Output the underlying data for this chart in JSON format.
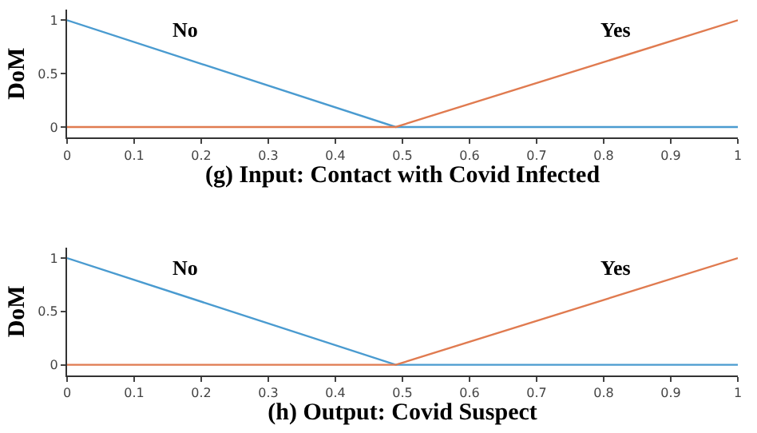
{
  "chart_data": [
    {
      "type": "line",
      "xlabel": "(g) Input: Contact with Covid Infected",
      "ylabel": "DoM",
      "series": [
        {
          "name": "No",
          "color": "#4a9bd0",
          "x": [
            0,
            0.49,
            1
          ],
          "values": [
            1,
            0,
            0
          ]
        },
        {
          "name": "Yes",
          "color": "#e07b50",
          "x": [
            0,
            0.49,
            1
          ],
          "values": [
            0,
            0,
            1
          ]
        }
      ],
      "xlim": [
        0,
        1
      ],
      "xticks": [
        0,
        0.1,
        0.2,
        0.3,
        0.4,
        0.5,
        0.6,
        0.7,
        0.8,
        0.9,
        1
      ],
      "ylim": [
        -0.1,
        1.1
      ],
      "yticks": [
        0,
        0.5,
        1
      ]
    },
    {
      "type": "line",
      "xlabel": "(h) Output: Covid Suspect",
      "ylabel": "DoM",
      "series": [
        {
          "name": "No",
          "color": "#4a9bd0",
          "x": [
            0,
            0.49,
            1
          ],
          "values": [
            1,
            0,
            0
          ]
        },
        {
          "name": "Yes",
          "color": "#e07b50",
          "x": [
            0,
            0.49,
            1
          ],
          "values": [
            0,
            0,
            1
          ]
        }
      ],
      "xlim": [
        0,
        1
      ],
      "xticks": [
        0,
        0.1,
        0.2,
        0.3,
        0.4,
        0.5,
        0.6,
        0.7,
        0.8,
        0.9,
        1
      ],
      "ylim": [
        -0.1,
        1.1
      ],
      "yticks": [
        0,
        0.5,
        1
      ]
    }
  ]
}
